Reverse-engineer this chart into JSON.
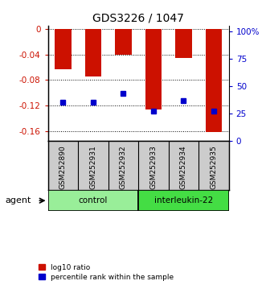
{
  "title": "GDS3226 / 1047",
  "samples": [
    "GSM252890",
    "GSM252931",
    "GSM252932",
    "GSM252933",
    "GSM252934",
    "GSM252935"
  ],
  "log10_ratio": [
    -0.063,
    -0.075,
    -0.04,
    -0.126,
    -0.046,
    -0.161
  ],
  "percentile_rank_pct": [
    35,
    35,
    43,
    27,
    37,
    27
  ],
  "groups": [
    {
      "label": "control",
      "indices": [
        0,
        1,
        2
      ],
      "color": "#99ee99"
    },
    {
      "label": "interleukin-22",
      "indices": [
        3,
        4,
        5
      ],
      "color": "#44dd44"
    }
  ],
  "ylim_left": [
    -0.175,
    0.005
  ],
  "ylim_right": [
    0,
    105
  ],
  "yticks_left": [
    0,
    -0.04,
    -0.08,
    -0.12,
    -0.16
  ],
  "yticks_right": [
    0,
    25,
    50,
    75,
    100
  ],
  "bar_color": "#cc1100",
  "dot_color": "#0000cc",
  "label_color_left": "#cc1100",
  "label_color_right": "#0000cc",
  "bg_color": "#ffffff",
  "sample_bg_color": "#cccccc",
  "legend_red": "log10 ratio",
  "legend_blue": "percentile rank within the sample",
  "agent_label": "agent",
  "bar_width": 0.55
}
